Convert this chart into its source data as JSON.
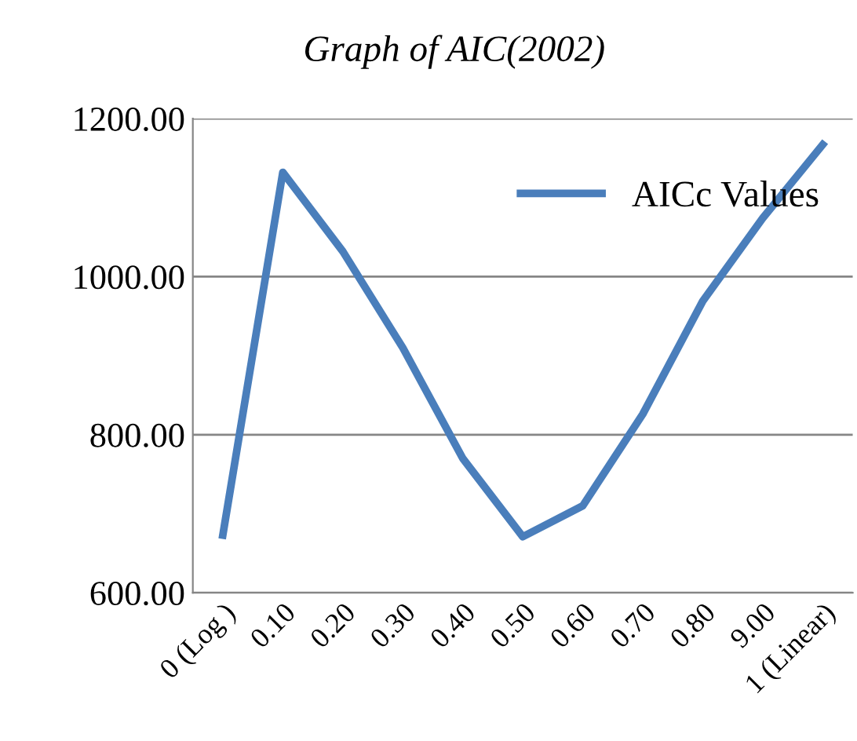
{
  "chart_data": {
    "type": "line",
    "title": "Graph of AIC(2002)",
    "categories": [
      "0 (Log )",
      "0.10",
      "0.20",
      "0.30",
      "0.40",
      "0.50",
      "0.60",
      "0.70",
      "0.80",
      "9.00",
      "1 (Linear)"
    ],
    "series": [
      {
        "name": "AICc Values",
        "color": "#4a7ebb",
        "values": [
          673,
          1132,
          1032,
          910,
          770,
          671,
          710,
          826,
          969,
          1074,
          1167
        ]
      }
    ],
    "ylim": [
      600,
      1200
    ],
    "yticks": [
      {
        "value": 600,
        "label": "600.00"
      },
      {
        "value": 800,
        "label": "800.00"
      },
      {
        "value": 1000,
        "label": "1000.00"
      },
      {
        "value": 1200,
        "label": "1200.00"
      }
    ],
    "grid": "y",
    "legend": "top right",
    "marker": "none",
    "line_style": "solid"
  }
}
